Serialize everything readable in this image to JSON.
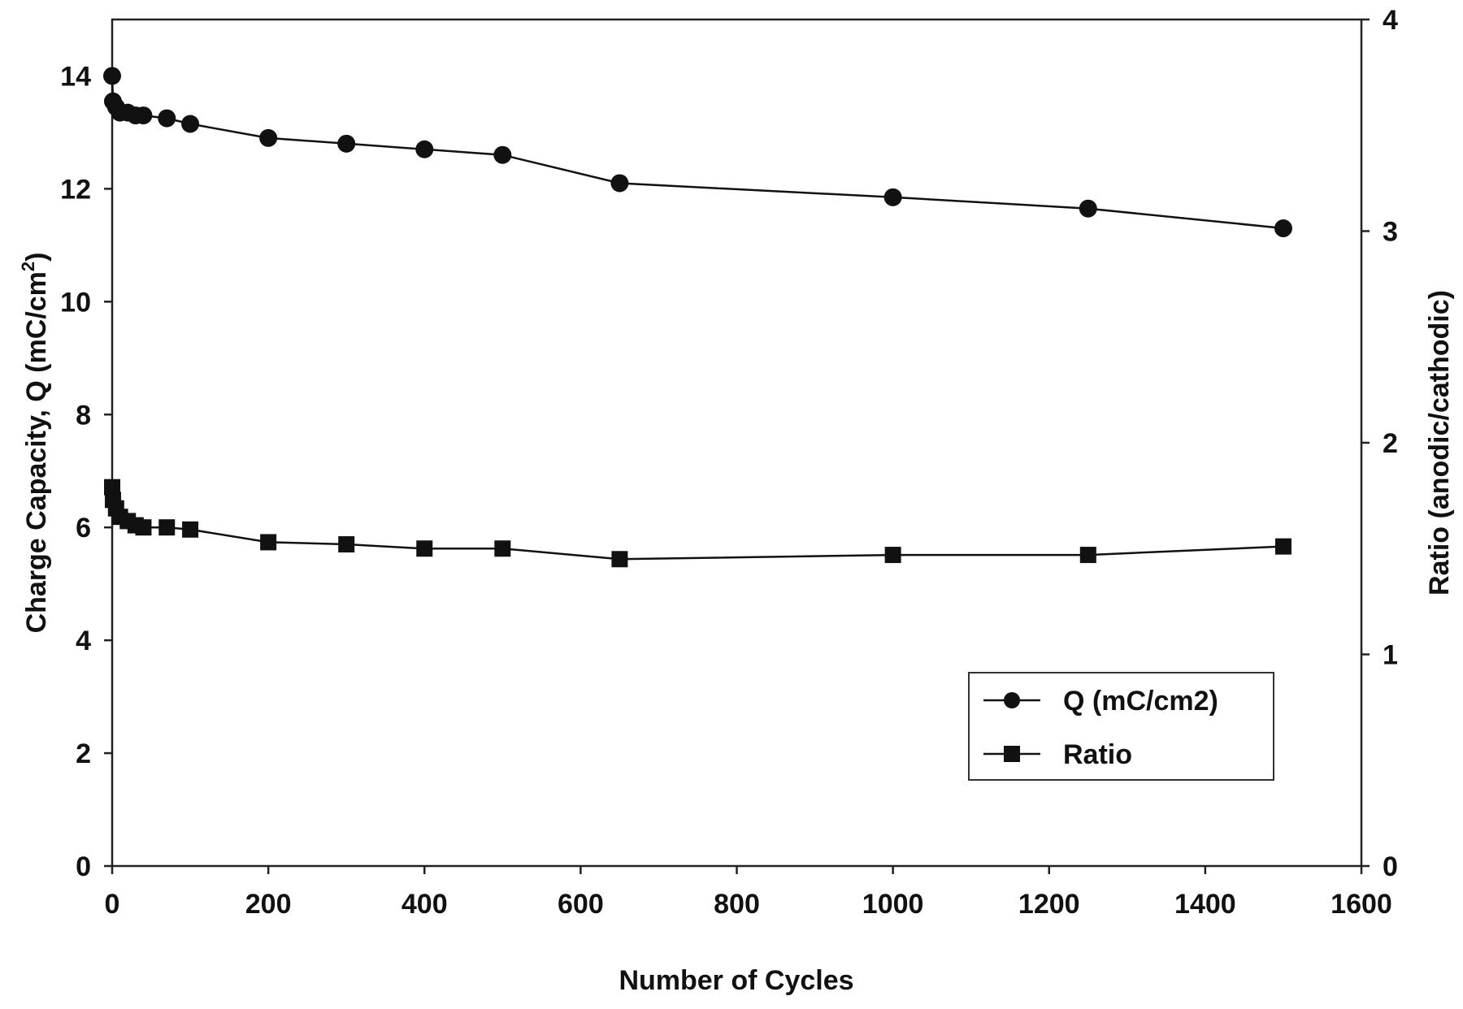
{
  "chart_data": {
    "type": "line",
    "title": "",
    "xlabel": "Number of Cycles",
    "ylabel_left_main": "Charge Capacity, Q (mC/cm",
    "ylabel_left_sup": "2",
    "ylabel_left_close": ")",
    "ylabel_right": "Ratio (anodic/cathodic)",
    "xlim": [
      0,
      1600
    ],
    "ylim_left": [
      0,
      15
    ],
    "ylim_right": [
      0,
      4
    ],
    "x_ticks": [
      0,
      200,
      400,
      600,
      800,
      1000,
      1200,
      1400,
      1600
    ],
    "y_left_ticks": [
      0,
      2,
      4,
      6,
      8,
      10,
      12,
      14
    ],
    "y_right_ticks": [
      0,
      1,
      2,
      3,
      4
    ],
    "grid": false,
    "legend_position": "bottom-right",
    "series": [
      {
        "name": "Q (mC/cm2)",
        "axis": "left",
        "marker": "circle",
        "x": [
          0,
          1,
          5,
          10,
          20,
          30,
          40,
          70,
          100,
          200,
          300,
          400,
          500,
          650,
          1000,
          1250,
          1500
        ],
        "y": [
          14.0,
          13.55,
          13.45,
          13.35,
          13.35,
          13.3,
          13.3,
          13.25,
          13.15,
          12.9,
          12.8,
          12.7,
          12.6,
          12.1,
          11.85,
          11.65,
          11.3
        ]
      },
      {
        "name": "Ratio",
        "axis": "right",
        "marker": "square",
        "x": [
          0,
          1,
          5,
          10,
          20,
          30,
          40,
          70,
          100,
          200,
          300,
          400,
          500,
          650,
          1000,
          1250,
          1500
        ],
        "y": [
          1.79,
          1.73,
          1.69,
          1.65,
          1.63,
          1.61,
          1.6,
          1.6,
          1.59,
          1.53,
          1.52,
          1.5,
          1.5,
          1.45,
          1.47,
          1.47,
          1.51
        ]
      }
    ]
  }
}
